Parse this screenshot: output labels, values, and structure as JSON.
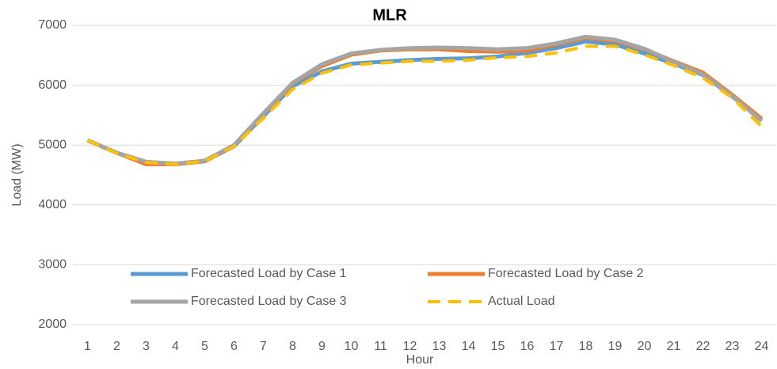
{
  "chart_data": {
    "type": "line",
    "title": "MLR",
    "x_label": "Hour",
    "y_label": "Load (MW)",
    "categories": [
      1,
      2,
      3,
      4,
      5,
      6,
      7,
      8,
      9,
      10,
      11,
      12,
      13,
      14,
      15,
      16,
      17,
      18,
      19,
      20,
      21,
      22,
      23,
      24
    ],
    "series": [
      {
        "name": "Forecasted Load by Case 1",
        "color": "#5b9bd5",
        "dashed": false,
        "values": [
          5080,
          4870,
          4720,
          4680,
          4730,
          4980,
          5480,
          5980,
          6230,
          6360,
          6390,
          6420,
          6440,
          6450,
          6480,
          6540,
          6620,
          6730,
          6680,
          6530,
          6360,
          6170,
          5810,
          5420
        ]
      },
      {
        "name": "Forecasted Load by Case 2",
        "color": "#ed7d31",
        "dashed": false,
        "values": [
          5080,
          4870,
          4680,
          4680,
          4730,
          4990,
          5520,
          6030,
          6320,
          6510,
          6580,
          6600,
          6600,
          6570,
          6560,
          6580,
          6680,
          6790,
          6740,
          6600,
          6400,
          6210,
          5840,
          5440
        ]
      },
      {
        "name": "Forecasted Load by Case 3",
        "color": "#a5a5a5",
        "dashed": false,
        "values": [
          5080,
          4870,
          4720,
          4690,
          4740,
          5000,
          5530,
          6040,
          6350,
          6530,
          6590,
          6620,
          6630,
          6620,
          6600,
          6620,
          6700,
          6810,
          6760,
          6610,
          6390,
          6180,
          5820,
          5400
        ]
      },
      {
        "name": "Actual Load",
        "color": "#ffc000",
        "dashed": true,
        "values": [
          5080,
          4860,
          4710,
          4680,
          4730,
          4980,
          5450,
          5930,
          6200,
          6340,
          6370,
          6400,
          6400,
          6420,
          6460,
          6480,
          6540,
          6650,
          6650,
          6510,
          6330,
          6120,
          5790,
          5310
        ]
      }
    ],
    "ylim": [
      2000,
      7000
    ],
    "yticks": [
      2000,
      3000,
      4000,
      5000,
      6000,
      7000
    ],
    "grid": true,
    "legend": "bottom"
  }
}
